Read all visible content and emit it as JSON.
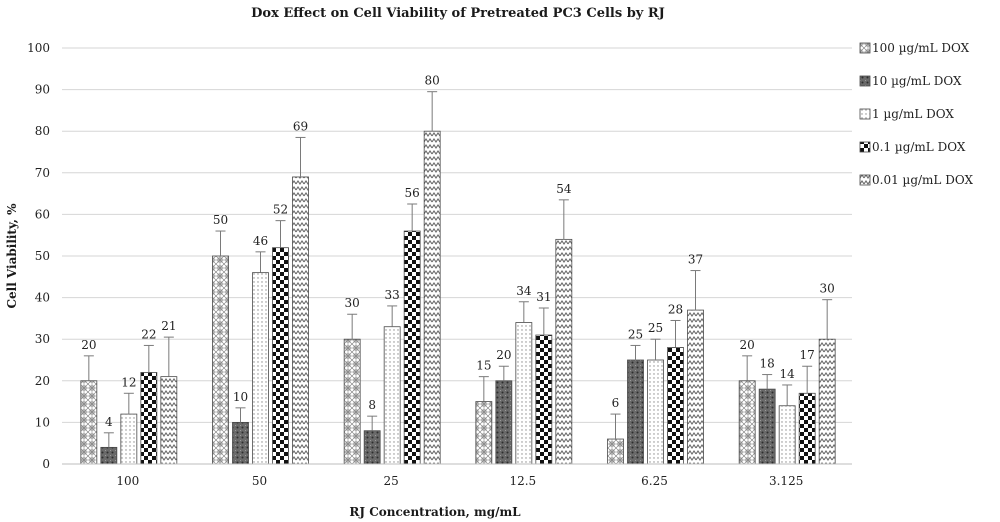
{
  "chart_data": {
    "type": "bar",
    "title": "Dox Effect on Cell Viability of Pretreated PC3 Cells by RJ",
    "xlabel": "RJ Concentration, mg/mL",
    "ylabel": "Cell Viability, %",
    "ylim": [
      0,
      100
    ],
    "yticks": [
      0,
      10,
      20,
      30,
      40,
      50,
      60,
      70,
      80,
      90,
      100
    ],
    "grid": "horizontal",
    "legend_position": "right",
    "categories": [
      "100",
      "50",
      "25",
      "12.5",
      "6.25",
      "3.125"
    ],
    "series": [
      {
        "name": "100 µg/mL DOX",
        "pattern": "diamond-check",
        "values": [
          20,
          50,
          30,
          15,
          6,
          20
        ],
        "errors": [
          6,
          6,
          6,
          6,
          6,
          6
        ]
      },
      {
        "name": "10 µg/mL DOX",
        "pattern": "dark-dots",
        "values": [
          4,
          10,
          8,
          20,
          25,
          18
        ],
        "errors": [
          3.5,
          3.5,
          3.5,
          3.5,
          3.5,
          3.5
        ]
      },
      {
        "name": "1 µg/mL DOX",
        "pattern": "light-dots",
        "values": [
          12,
          46,
          33,
          34,
          25,
          14
        ],
        "errors": [
          5,
          5,
          5,
          5,
          5,
          5
        ]
      },
      {
        "name": "0.1 µg/mL DOX",
        "pattern": "checker",
        "values": [
          22,
          52,
          56,
          31,
          28,
          17
        ],
        "errors": [
          6.5,
          6.5,
          6.5,
          6.5,
          6.5,
          6.5
        ]
      },
      {
        "name": "0.01 µg/mL DOX",
        "pattern": "zigzag",
        "values": [
          21,
          69,
          80,
          54,
          37,
          30
        ],
        "errors": [
          9.5,
          9.5,
          9.5,
          9.5,
          9.5,
          9.5
        ]
      }
    ]
  }
}
